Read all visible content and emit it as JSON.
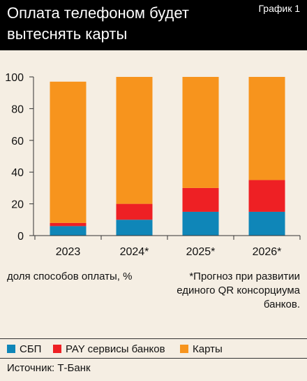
{
  "header": {
    "title": "Оплата телефоном будет вытеснять карты",
    "graph_label": "График 1"
  },
  "notes": {
    "unit": "доля способов оплаты, %",
    "forecast": "*Прогноз при развитии единого QR консорциума банков."
  },
  "legend": [
    {
      "label": "СБП",
      "color": "#0f86b8"
    },
    {
      "label": "PAY сервисы банков",
      "color": "#ee2024"
    },
    {
      "label": "Карты",
      "color": "#f7941d"
    }
  ],
  "source": "Источник: Т-Банк",
  "chart_data": {
    "type": "bar",
    "stacked": true,
    "categories": [
      "2023",
      "2024*",
      "2025*",
      "2026*"
    ],
    "series": [
      {
        "name": "СБП",
        "color": "#0f86b8",
        "values": [
          6,
          10,
          15,
          15
        ]
      },
      {
        "name": "PAY сервисы банков",
        "color": "#ee2024",
        "values": [
          2,
          10,
          15,
          20
        ]
      },
      {
        "name": "Карты",
        "color": "#f7941d",
        "values": [
          89,
          80,
          70,
          65
        ]
      }
    ],
    "ylim": [
      0,
      100
    ],
    "yticks": [
      0,
      20,
      40,
      60,
      80,
      100
    ],
    "grid": false
  }
}
